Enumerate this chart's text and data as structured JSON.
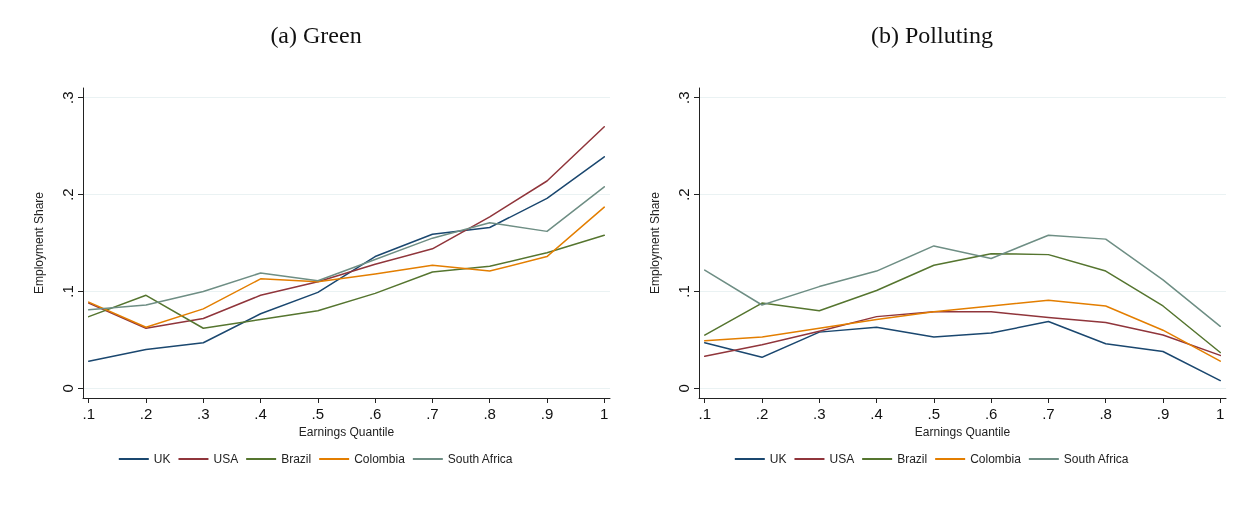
{
  "chart_data": [
    {
      "type": "line",
      "title": "(a) Green",
      "xlabel": "Earnings Quantile",
      "ylabel": "Employment Share",
      "x": [
        0.1,
        0.2,
        0.3,
        0.4,
        0.5,
        0.6,
        0.7,
        0.8,
        0.9,
        1
      ],
      "series": [
        {
          "name": "UK",
          "color": "#1a476f",
          "values": [
            0.028,
            0.04,
            0.047,
            0.077,
            0.099,
            0.136,
            0.159,
            0.166,
            0.196,
            0.239
          ]
        },
        {
          "name": "USA",
          "color": "#90353b",
          "values": [
            0.088,
            0.062,
            0.072,
            0.096,
            0.11,
            0.128,
            0.144,
            0.177,
            0.214,
            0.27
          ]
        },
        {
          "name": "Brazil",
          "color": "#55752f",
          "values": [
            0.074,
            0.096,
            0.062,
            0.071,
            0.08,
            0.098,
            0.12,
            0.126,
            0.14,
            0.158
          ]
        },
        {
          "name": "Colombia",
          "color": "#e37e00",
          "values": [
            0.089,
            0.063,
            0.082,
            0.113,
            0.11,
            0.118,
            0.127,
            0.121,
            0.136,
            0.187
          ]
        },
        {
          "name": "South Africa",
          "color": "#6e8e84",
          "values": [
            0.081,
            0.086,
            0.1,
            0.119,
            0.111,
            0.133,
            0.155,
            0.171,
            0.162,
            0.208
          ]
        }
      ],
      "xlim": [
        0.09,
        1.01
      ],
      "xticks": [
        {
          "value": 0.1,
          "label": ".1"
        },
        {
          "value": 0.2,
          "label": ".2"
        },
        {
          "value": 0.3,
          "label": ".3"
        },
        {
          "value": 0.4,
          "label": ".4"
        },
        {
          "value": 0.5,
          "label": ".5"
        },
        {
          "value": 0.6,
          "label": ".6"
        },
        {
          "value": 0.7,
          "label": ".7"
        },
        {
          "value": 0.8,
          "label": ".8"
        },
        {
          "value": 0.9,
          "label": ".9"
        },
        1
      ],
      "ylim": [
        -0.01,
        0.31
      ],
      "yticks": [
        0,
        {
          "value": 0.1,
          "label": ".1"
        },
        {
          "value": 0.2,
          "label": ".2"
        },
        {
          "value": 0.3,
          "label": ".3"
        }
      ],
      "grid": "y",
      "legend": "bottom",
      "marker": "none",
      "line_style": "solid"
    },
    {
      "type": "line",
      "title": "(b) Polluting",
      "xlabel": "Earnings Quantile",
      "ylabel": "Employment Share",
      "x": [
        0.1,
        0.2,
        0.3,
        0.4,
        0.5,
        0.6,
        0.7,
        0.8,
        0.9,
        1
      ],
      "series": [
        {
          "name": "UK",
          "color": "#1a476f",
          "values": [
            0.047,
            0.032,
            0.058,
            0.063,
            0.053,
            0.057,
            0.069,
            0.046,
            0.038,
            0.008
          ]
        },
        {
          "name": "USA",
          "color": "#90353b",
          "values": [
            0.033,
            0.045,
            0.059,
            0.074,
            0.079,
            0.079,
            0.073,
            0.068,
            0.055,
            0.034
          ]
        },
        {
          "name": "Brazil",
          "color": "#55752f",
          "values": [
            0.055,
            0.088,
            0.08,
            0.101,
            0.127,
            0.139,
            0.138,
            0.121,
            0.085,
            0.037
          ]
        },
        {
          "name": "Colombia",
          "color": "#e37e00",
          "values": [
            0.049,
            0.053,
            0.062,
            0.071,
            0.079,
            0.085,
            0.091,
            0.085,
            0.06,
            0.028
          ]
        },
        {
          "name": "South Africa",
          "color": "#6e8e84",
          "values": [
            0.122,
            0.086,
            0.105,
            0.121,
            0.147,
            0.134,
            0.158,
            0.154,
            0.112,
            0.064
          ]
        }
      ],
      "xlim": [
        0.09,
        1.01
      ],
      "xticks": [
        {
          "value": 0.1,
          "label": ".1"
        },
        {
          "value": 0.2,
          "label": ".2"
        },
        {
          "value": 0.3,
          "label": ".3"
        },
        {
          "value": 0.4,
          "label": ".4"
        },
        {
          "value": 0.5,
          "label": ".5"
        },
        {
          "value": 0.6,
          "label": ".6"
        },
        {
          "value": 0.7,
          "label": ".7"
        },
        {
          "value": 0.8,
          "label": ".8"
        },
        {
          "value": 0.9,
          "label": ".9"
        },
        1
      ],
      "ylim": [
        -0.01,
        0.31
      ],
      "yticks": [
        0,
        {
          "value": 0.1,
          "label": ".1"
        },
        {
          "value": 0.2,
          "label": ".2"
        },
        {
          "value": 0.3,
          "label": ".3"
        }
      ],
      "grid": "y",
      "legend": "bottom",
      "marker": "none",
      "line_style": "solid"
    }
  ]
}
